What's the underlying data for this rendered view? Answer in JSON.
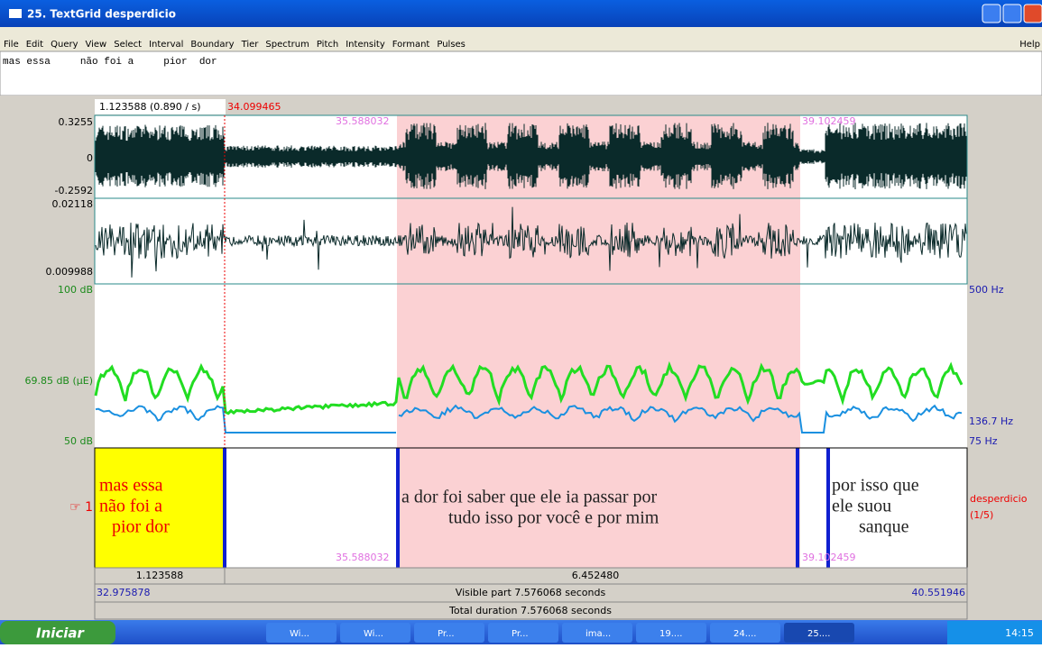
{
  "window": {
    "title": "25. TextGrid desperdicio",
    "menu": [
      "File",
      "Edit",
      "Query",
      "View",
      "Select",
      "Interval",
      "Boundary",
      "Tier",
      "Spectrum",
      "Pitch",
      "Intensity",
      "Formant",
      "Pulses"
    ],
    "help": "Help"
  },
  "text_field": "mas essa     não foi a     pior  dor",
  "editor": {
    "cursor_info": "1.123588 (0.890 / s)",
    "cursor_time": "34.099465",
    "selection_start": "35.588032",
    "selection_end": "39.102459",
    "wave_labels": [
      "0.3255",
      "0",
      "-0.2592"
    ],
    "wave2_labels": [
      "0.02118",
      "0.009988"
    ],
    "intensity_labels": [
      "100 dB",
      "69.85 dB (μE)",
      "50 dB"
    ],
    "pitch_labels": [
      "500 Hz",
      "136.7 Hz",
      "75 Hz"
    ],
    "tier_number": "☞ 1",
    "tier_name": [
      "desperdicio",
      "(1/5)"
    ],
    "intervals": [
      [
        "mas essa",
        "não foi a",
        "pior  dor"
      ],
      [
        "a dor foi saber que ele ia passar por",
        "tudo isso por você e por mim"
      ],
      [
        "por isso que",
        "ele suou",
        "sanque"
      ]
    ],
    "durations": [
      "1.123588",
      "6.452480"
    ],
    "visible_start": "32.975878",
    "visible_part": "Visible part 7.576068 seconds",
    "visible_end": "40.551946",
    "total_duration": "Total duration 7.576068 seconds"
  },
  "taskbar": {
    "start": "Iniciar",
    "buttons": [
      "Wi...",
      "Wi...",
      "Pr...",
      "Pr...",
      "ima...",
      "19....",
      "24....",
      "25...."
    ],
    "clock": "14:15"
  }
}
